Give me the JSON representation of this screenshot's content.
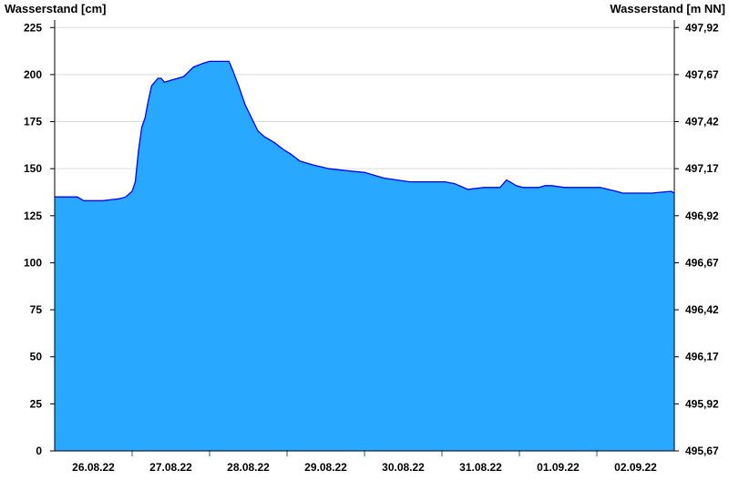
{
  "chart_data": {
    "type": "area",
    "ylabel_left": "Wasserstand [cm]",
    "ylabel_right": "Wasserstand [m NN]",
    "ylim": [
      0,
      229
    ],
    "yticks_left": [
      "0",
      "25",
      "50",
      "75",
      "100",
      "125",
      "150",
      "175",
      "200",
      "225"
    ],
    "yticks_right": [
      "495,67",
      "495,92",
      "496,17",
      "496,42",
      "496,67",
      "496,92",
      "497,17",
      "497,42",
      "497,67",
      "497,92"
    ],
    "xticks": [
      "26.08.22",
      "27.08.22",
      "28.08.22",
      "29.08.22",
      "30.08.22",
      "31.08.22",
      "01.09.22",
      "02.09.22"
    ],
    "xlim": [
      "26.08.22 00:00",
      "03.09.22 00:00"
    ],
    "grid": true,
    "colors": {
      "fill": "#29a8ff",
      "line": "#0000ff",
      "grid": "#dcdcdc",
      "day_separator": "#1f5f8f"
    },
    "series": [
      {
        "x": [
          "26.08.22 00:00",
          "26.08.22 07:00",
          "26.08.22 09:00",
          "26.08.22 15:00",
          "26.08.22 20:00",
          "26.08.22 22:00",
          "27.08.22 00:00",
          "27.08.22 01:00",
          "27.08.22 02:00",
          "27.08.22 03:00",
          "27.08.22 04:00",
          "27.08.22 05:00",
          "27.08.22 06:00",
          "27.08.22 08:00",
          "27.08.22 09:00",
          "27.08.22 10:00",
          "27.08.22 12:00",
          "27.08.22 16:00",
          "27.08.22 19:00",
          "27.08.22 22:00",
          "28.08.22 00:00",
          "28.08.22 06:00",
          "28.08.22 07:00",
          "28.08.22 09:00",
          "28.08.22 11:00",
          "28.08.22 13:00",
          "28.08.22 15:00",
          "28.08.22 17:00",
          "28.08.22 20:00",
          "28.08.22 23:00",
          "29.08.22 01:00",
          "29.08.22 04:00",
          "29.08.22 08:00",
          "29.08.22 13:00",
          "29.08.22 18:00",
          "30.08.22 00:00",
          "30.08.22 06:00",
          "30.08.22 14:00",
          "31.08.22 01:00",
          "31.08.22 04:00",
          "31.08.22 08:00",
          "31.08.22 13:00",
          "31.08.22 18:00",
          "31.08.22 20:00",
          "31.08.22 21:00",
          "31.08.22 23:00",
          "01.09.22 01:00",
          "01.09.22 06:00",
          "01.09.22 08:00",
          "01.09.22 10:00",
          "01.09.22 14:00",
          "02.09.22 01:00",
          "02.09.22 06:00",
          "02.09.22 08:00",
          "02.09.22 17:00",
          "02.09.22 23:00",
          "03.09.22 00:00"
        ],
        "y": [
          135,
          135,
          133,
          133,
          134,
          135,
          138,
          143,
          160,
          172,
          177,
          186,
          194,
          198,
          198,
          196,
          197,
          199,
          204,
          206,
          207,
          207,
          203,
          194,
          184,
          177,
          170,
          167,
          164,
          160,
          158,
          154,
          152,
          150,
          149,
          148,
          145,
          143,
          143,
          142,
          139,
          140,
          140,
          144,
          143,
          141,
          140,
          140,
          141,
          141,
          140,
          140,
          138,
          137,
          137,
          138,
          137
        ]
      }
    ]
  }
}
